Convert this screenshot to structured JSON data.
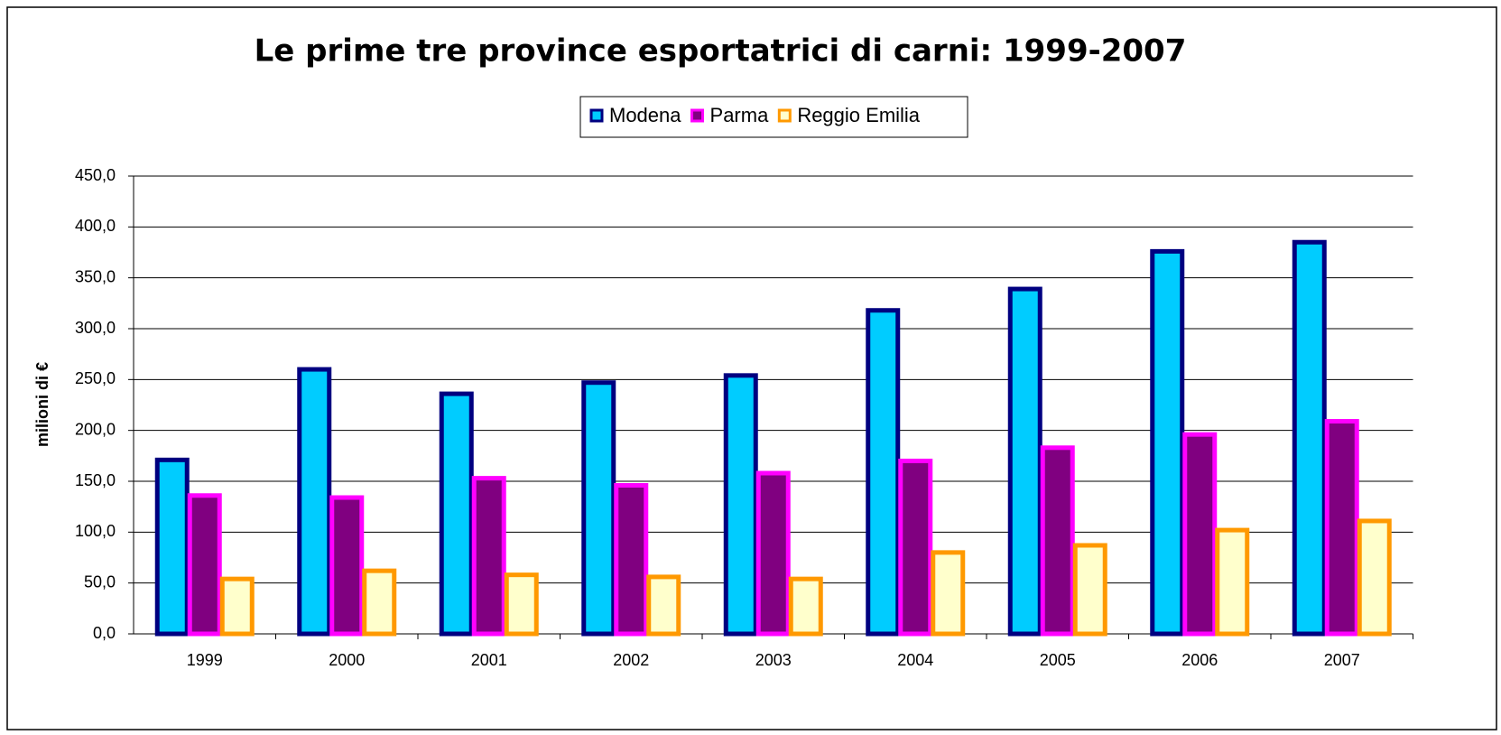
{
  "chart_data": {
    "type": "bar",
    "title": "Le prime tre province esportatrici di carni: 1999-2007",
    "y_label": "milioni di €",
    "categories": [
      "1999",
      "2000",
      "2001",
      "2002",
      "2003",
      "2004",
      "2005",
      "2006",
      "2007"
    ],
    "series": [
      {
        "name": "Modena",
        "color": "#00ccff",
        "stroke": "#000080",
        "values": [
          171,
          260,
          236,
          247,
          254,
          318,
          339,
          376,
          385
        ]
      },
      {
        "name": "Parma",
        "color": "#800080",
        "stroke": "#ff00ff",
        "values": [
          136,
          134,
          153,
          146,
          158,
          170,
          183,
          196,
          209
        ]
      },
      {
        "name": "Reggio Emilia",
        "color": "#ffffcc",
        "stroke": "#ff9900",
        "values": [
          54,
          62,
          58,
          56,
          54,
          80,
          87,
          102,
          111
        ]
      }
    ],
    "ylim": [
      0,
      450
    ],
    "yticks": [
      {
        "value": 0,
        "label": "0,0"
      },
      {
        "value": 50,
        "label": "50,0"
      },
      {
        "value": 100,
        "label": "100,0"
      },
      {
        "value": 150,
        "label": "150,0"
      },
      {
        "value": 200,
        "label": "200,0"
      },
      {
        "value": 250,
        "label": "250,0"
      },
      {
        "value": 300,
        "label": "300,0"
      },
      {
        "value": 350,
        "label": "350,0"
      },
      {
        "value": 400,
        "label": "400,0"
      },
      {
        "value": 450,
        "label": "450,0"
      }
    ],
    "grid": true,
    "legend": "top"
  }
}
